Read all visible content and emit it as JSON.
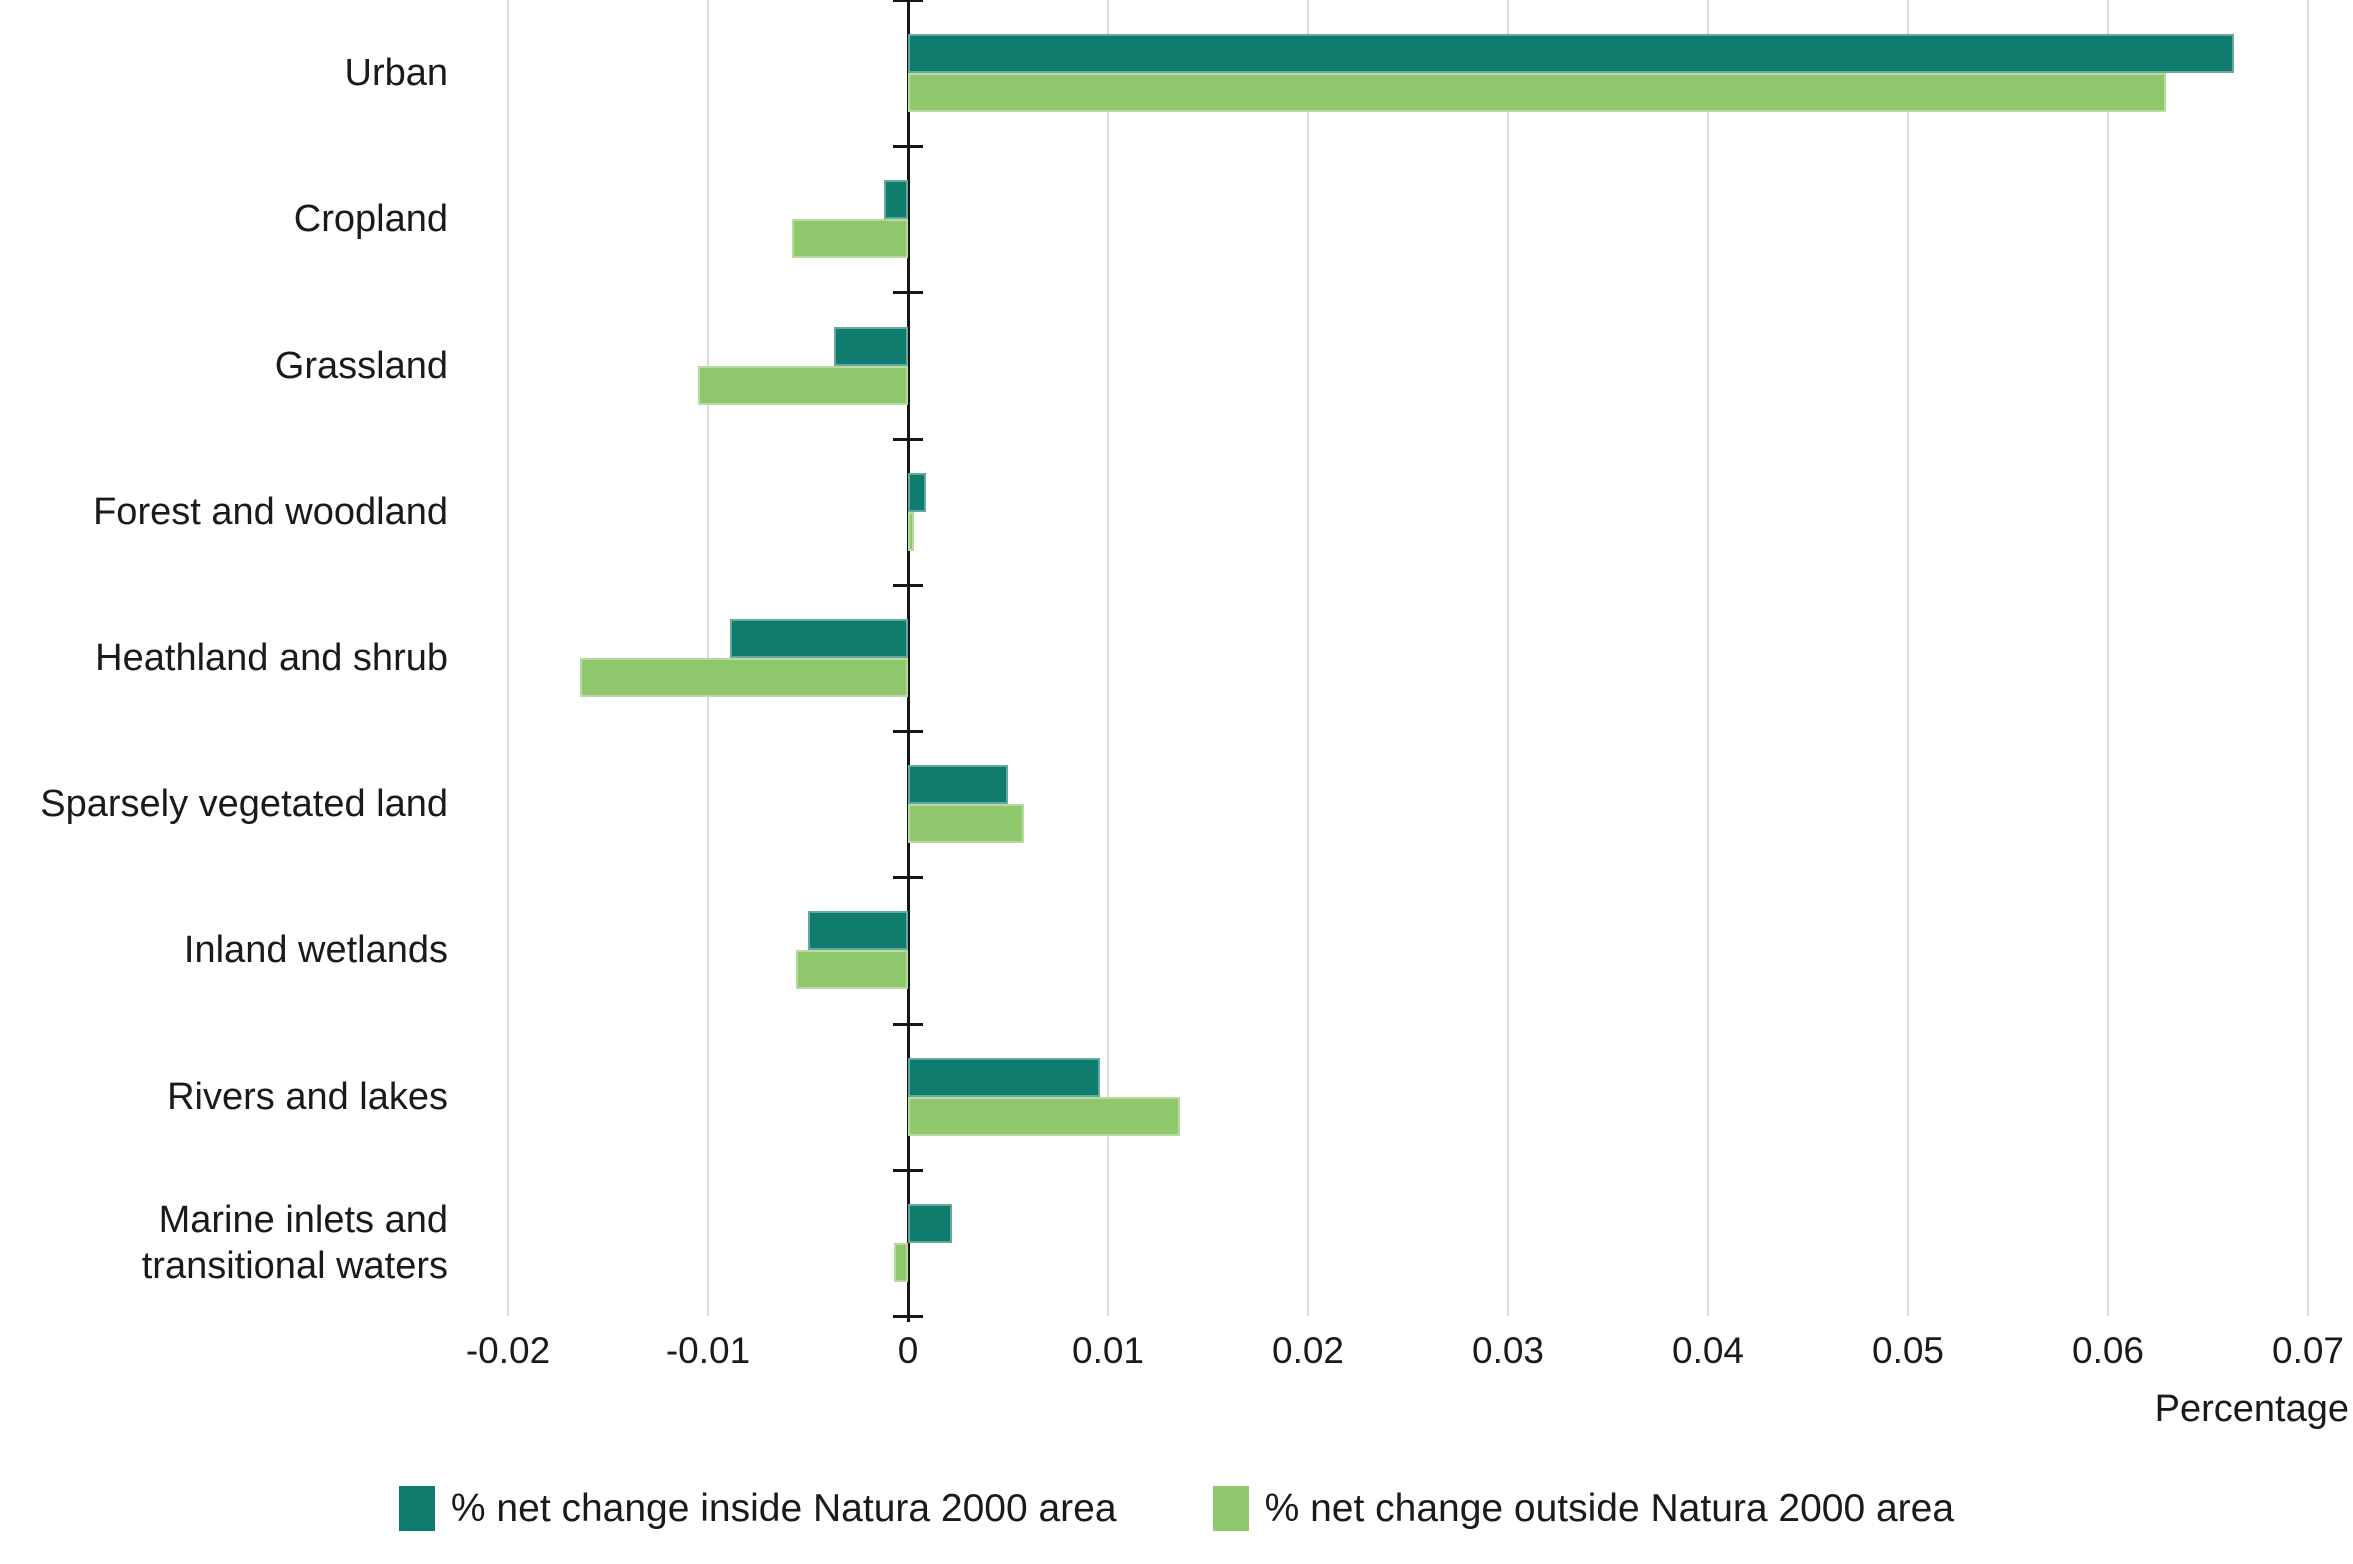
{
  "chart_data": {
    "type": "bar",
    "orientation": "horizontal",
    "title": "",
    "xlabel": "Percentage",
    "categories": [
      "Urban",
      "Cropland",
      "Grassland",
      "Forest and woodland",
      "Heathland and shrub",
      "Sparsely vegetated land",
      "Inland wetlands",
      "Rivers and lakes",
      "Marine inlets and transitional waters"
    ],
    "series": [
      {
        "name": "% net change inside Natura 2000 area",
        "color": "#107C6E",
        "values": [
          0.0663,
          -0.0012,
          -0.0037,
          0.0009,
          -0.0089,
          0.005,
          -0.005,
          0.0096,
          0.0022
        ]
      },
      {
        "name": "% net change outside Natura 2000 area",
        "color": "#8FC76D",
        "values": [
          0.0629,
          -0.0058,
          -0.0105,
          0.0003,
          -0.0164,
          0.0058,
          -0.0056,
          0.0136,
          -0.0007
        ]
      }
    ],
    "x_ticks": [
      -0.02,
      -0.01,
      0,
      0.01,
      0.02,
      0.03,
      0.04,
      0.05,
      0.06,
      0.07
    ],
    "x_tick_labels": [
      "-0.02",
      "-0.01",
      "0",
      "0.01",
      "0.02",
      "0.03",
      "0.04",
      "0.05",
      "0.06",
      "0.07"
    ],
    "xlim": [
      -0.0227,
      0.0723
    ],
    "grid": true,
    "legend_position": "bottom",
    "colors": {
      "gridline": "#dcdcdc",
      "axis": "#161616",
      "text": "#1a1a1a"
    }
  }
}
